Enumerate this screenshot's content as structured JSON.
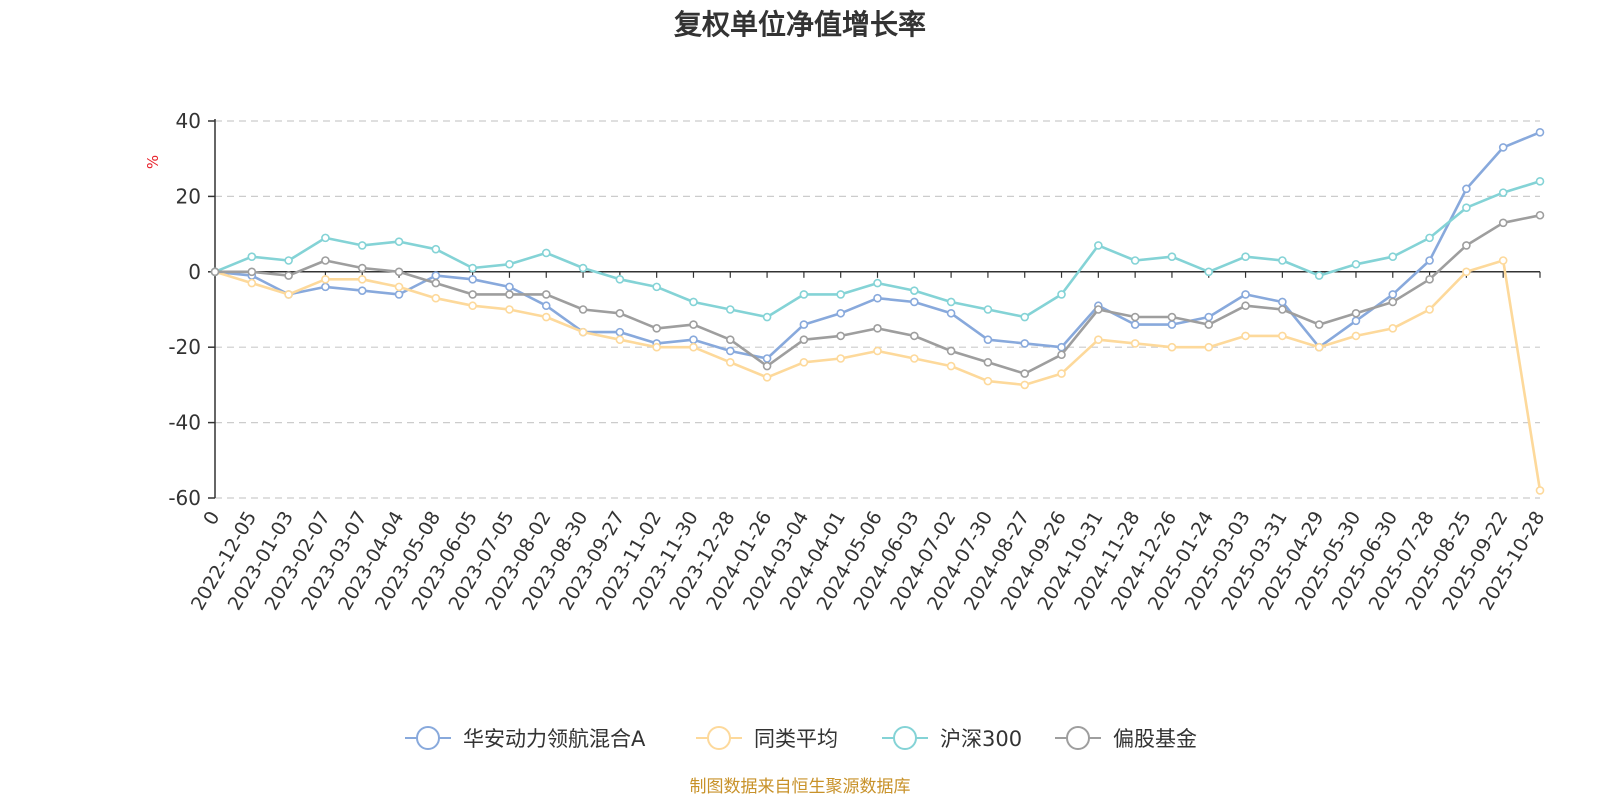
{
  "chart_data": {
    "type": "line",
    "title": "复权单位净值增长率",
    "ylabel": "%",
    "ylim": [
      -60,
      40
    ],
    "yticks": [
      40,
      20,
      0,
      -20,
      -40,
      -60
    ],
    "grid": true,
    "legend_position": "bottom",
    "source": "制图数据来自恒生聚源数据库",
    "x_labels": [
      "0",
      "2022-12-05",
      "2023-01-03",
      "2023-02-07",
      "2023-03-07",
      "2023-04-04",
      "2023-05-08",
      "2023-06-05",
      "2023-07-05",
      "2023-08-02",
      "2023-08-30",
      "2023-09-27",
      "2023-11-02",
      "2023-11-30",
      "2023-12-28",
      "2024-01-26",
      "2024-03-04",
      "2024-04-01",
      "2024-05-06",
      "2024-06-03",
      "2024-07-02",
      "2024-07-30",
      "2024-08-27",
      "2024-09-26",
      "2024-10-31",
      "2024-11-28",
      "2024-12-26",
      "2025-01-24",
      "2025-03-03",
      "2025-03-31",
      "2025-04-29",
      "2025-05-30",
      "2025-06-30",
      "2025-07-28",
      "2025-08-25",
      "2025-09-22",
      "2025-10-28"
    ],
    "series": [
      {
        "name": "华安动力领航混合A",
        "color": "#88a9dc",
        "values": [
          0,
          -1,
          -6,
          -4,
          -5,
          -6,
          -1,
          -2,
          -4,
          -9,
          -16,
          -16,
          -19,
          -18,
          -21,
          -23,
          -14,
          -11,
          -7,
          -8,
          -11,
          -18,
          -19,
          -20,
          -9,
          -14,
          -14,
          -12,
          -6,
          -8,
          -20,
          -13,
          -6,
          3,
          22,
          33,
          37
        ]
      },
      {
        "name": "同类平均",
        "color": "#fdd99b",
        "values": [
          0,
          -3,
          -6,
          -2,
          -2,
          -4,
          -7,
          -9,
          -10,
          -12,
          -16,
          -18,
          -20,
          -20,
          -24,
          -28,
          -24,
          -23,
          -21,
          -23,
          -25,
          -29,
          -30,
          -27,
          -18,
          -19,
          -20,
          -20,
          -17,
          -17,
          -20,
          -17,
          -15,
          -10,
          0,
          3,
          -58
        ]
      },
      {
        "name": "沪深300",
        "color": "#84d3d6",
        "values": [
          0,
          4,
          3,
          9,
          7,
          8,
          6,
          1,
          2,
          5,
          1,
          -2,
          -4,
          -8,
          -10,
          -12,
          -6,
          -6,
          -3,
          -5,
          -8,
          -10,
          -12,
          -6,
          7,
          3,
          4,
          0,
          4,
          3,
          -1,
          2,
          4,
          9,
          17,
          21,
          24
        ]
      },
      {
        "name": "偏股基金",
        "color": "#9e9e9e",
        "values": [
          0,
          0,
          -1,
          3,
          1,
          0,
          -3,
          -6,
          -6,
          -6,
          -10,
          -11,
          -15,
          -14,
          -18,
          -25,
          -18,
          -17,
          -15,
          -17,
          -21,
          -24,
          -27,
          -22,
          -10,
          -12,
          -12,
          -14,
          -9,
          -10,
          -14,
          -11,
          -8,
          -2,
          7,
          13,
          15
        ]
      }
    ]
  }
}
